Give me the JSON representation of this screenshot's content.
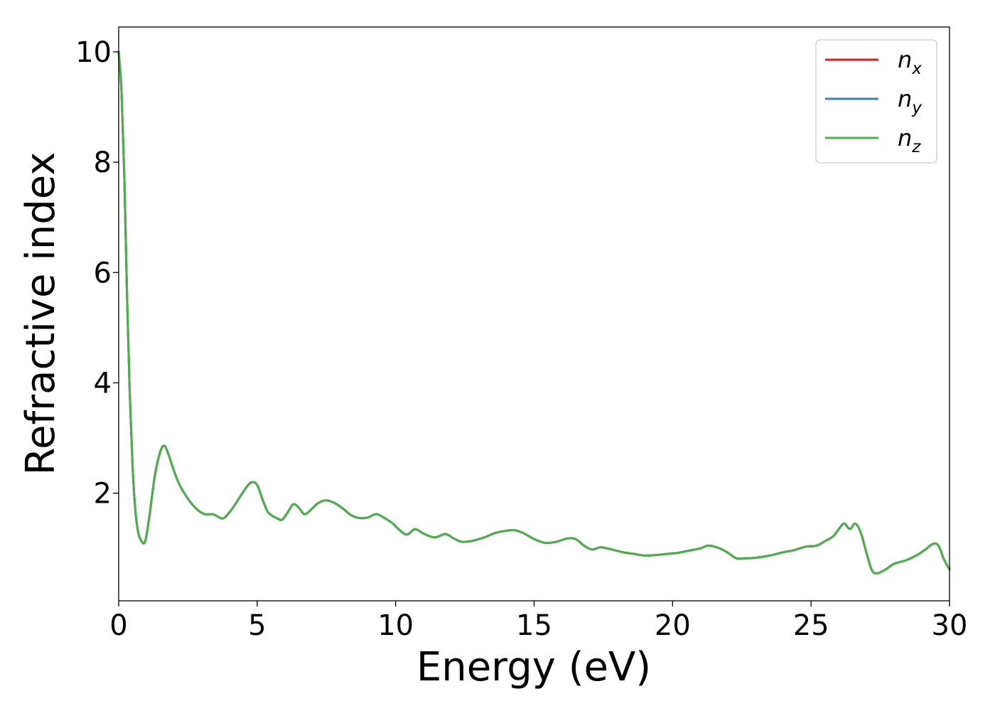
{
  "chart_data": {
    "type": "line",
    "title": "",
    "xlabel": "Energy (eV)",
    "ylabel": "Refractive index",
    "xlim": [
      0,
      30
    ],
    "ylim": [
      0.05,
      10.45
    ],
    "xticks": [
      0,
      5,
      10,
      15,
      20,
      25,
      30
    ],
    "yticks": [
      2,
      4,
      6,
      8,
      10
    ],
    "xtick_labels": [
      "0",
      "5",
      "10",
      "15",
      "20",
      "25",
      "30"
    ],
    "ytick_labels": [
      "2",
      "4",
      "6",
      "8",
      "10"
    ],
    "grid": false,
    "legend_position": "top-right",
    "x": [
      0,
      0.1,
      0.2,
      0.3,
      0.4,
      0.5,
      0.6,
      0.7,
      0.8,
      0.95,
      1.1,
      1.3,
      1.5,
      1.65,
      1.8,
      2.0,
      2.2,
      2.5,
      2.8,
      3.1,
      3.4,
      3.6,
      3.8,
      4.1,
      4.4,
      4.6,
      4.8,
      5.0,
      5.2,
      5.4,
      5.7,
      5.9,
      6.1,
      6.3,
      6.5,
      6.7,
      6.9,
      7.2,
      7.5,
      7.8,
      8.1,
      8.4,
      8.7,
      9.0,
      9.3,
      9.6,
      9.9,
      10.1,
      10.4,
      10.7,
      11.0,
      11.4,
      11.8,
      12.1,
      12.4,
      12.8,
      13.2,
      13.6,
      14.0,
      14.3,
      14.6,
      15.0,
      15.4,
      15.8,
      16.2,
      16.5,
      16.8,
      17.1,
      17.4,
      17.8,
      18.2,
      18.6,
      19.0,
      19.4,
      19.8,
      20.2,
      20.6,
      21.0,
      21.3,
      21.7,
      22.0,
      22.3,
      22.6,
      23.0,
      23.5,
      24.0,
      24.4,
      24.8,
      25.2,
      25.5,
      25.8,
      26.0,
      26.2,
      26.4,
      26.6,
      26.8,
      27.0,
      27.2,
      27.4,
      27.7,
      28.0,
      28.4,
      28.8,
      29.1,
      29.4,
      29.6,
      29.8,
      30.0
    ],
    "series": [
      {
        "name": "n_x",
        "color": "#e41a1c",
        "values": [
          10.0,
          9.3,
          7.8,
          5.6,
          3.8,
          2.5,
          1.7,
          1.3,
          1.15,
          1.12,
          1.55,
          2.3,
          2.75,
          2.86,
          2.7,
          2.4,
          2.15,
          1.9,
          1.72,
          1.62,
          1.62,
          1.57,
          1.55,
          1.72,
          1.95,
          2.1,
          2.2,
          2.15,
          1.88,
          1.65,
          1.55,
          1.52,
          1.65,
          1.8,
          1.74,
          1.62,
          1.68,
          1.82,
          1.87,
          1.82,
          1.72,
          1.6,
          1.55,
          1.56,
          1.62,
          1.55,
          1.45,
          1.35,
          1.25,
          1.35,
          1.27,
          1.2,
          1.26,
          1.18,
          1.12,
          1.14,
          1.2,
          1.28,
          1.32,
          1.33,
          1.28,
          1.17,
          1.1,
          1.12,
          1.18,
          1.17,
          1.05,
          0.98,
          1.02,
          0.98,
          0.93,
          0.9,
          0.87,
          0.88,
          0.9,
          0.92,
          0.96,
          1.0,
          1.05,
          1.0,
          0.92,
          0.82,
          0.82,
          0.83,
          0.87,
          0.93,
          0.97,
          1.03,
          1.05,
          1.13,
          1.22,
          1.35,
          1.45,
          1.35,
          1.45,
          1.28,
          0.92,
          0.6,
          0.55,
          0.62,
          0.72,
          0.78,
          0.87,
          0.97,
          1.08,
          1.05,
          0.8,
          0.62
        ]
      },
      {
        "name": "n_y",
        "color": "#377eb8",
        "values": [
          10.0,
          9.3,
          7.8,
          5.6,
          3.8,
          2.5,
          1.7,
          1.3,
          1.15,
          1.12,
          1.55,
          2.3,
          2.75,
          2.86,
          2.7,
          2.4,
          2.15,
          1.9,
          1.72,
          1.62,
          1.62,
          1.57,
          1.55,
          1.72,
          1.95,
          2.1,
          2.2,
          2.15,
          1.88,
          1.65,
          1.55,
          1.52,
          1.65,
          1.8,
          1.74,
          1.62,
          1.68,
          1.82,
          1.87,
          1.82,
          1.72,
          1.6,
          1.55,
          1.56,
          1.62,
          1.55,
          1.45,
          1.35,
          1.25,
          1.35,
          1.27,
          1.2,
          1.26,
          1.18,
          1.12,
          1.14,
          1.2,
          1.28,
          1.32,
          1.33,
          1.28,
          1.17,
          1.1,
          1.12,
          1.18,
          1.17,
          1.05,
          0.98,
          1.02,
          0.98,
          0.93,
          0.9,
          0.87,
          0.88,
          0.9,
          0.92,
          0.96,
          1.0,
          1.05,
          1.0,
          0.92,
          0.82,
          0.82,
          0.83,
          0.87,
          0.93,
          0.97,
          1.03,
          1.05,
          1.13,
          1.22,
          1.35,
          1.45,
          1.35,
          1.45,
          1.28,
          0.92,
          0.6,
          0.55,
          0.62,
          0.72,
          0.78,
          0.87,
          0.97,
          1.08,
          1.05,
          0.8,
          0.62
        ]
      },
      {
        "name": "n_z",
        "color": "#4daf4a",
        "values": [
          10.0,
          9.3,
          7.8,
          5.6,
          3.8,
          2.5,
          1.7,
          1.3,
          1.15,
          1.12,
          1.55,
          2.3,
          2.75,
          2.86,
          2.7,
          2.4,
          2.15,
          1.9,
          1.72,
          1.62,
          1.62,
          1.57,
          1.55,
          1.72,
          1.95,
          2.1,
          2.2,
          2.15,
          1.88,
          1.65,
          1.55,
          1.52,
          1.65,
          1.8,
          1.74,
          1.62,
          1.68,
          1.82,
          1.87,
          1.82,
          1.72,
          1.6,
          1.55,
          1.56,
          1.62,
          1.55,
          1.45,
          1.35,
          1.25,
          1.35,
          1.27,
          1.2,
          1.26,
          1.18,
          1.12,
          1.14,
          1.2,
          1.28,
          1.32,
          1.33,
          1.28,
          1.17,
          1.1,
          1.12,
          1.18,
          1.17,
          1.05,
          0.98,
          1.02,
          0.98,
          0.93,
          0.9,
          0.87,
          0.88,
          0.9,
          0.92,
          0.96,
          1.0,
          1.05,
          1.0,
          0.92,
          0.82,
          0.82,
          0.83,
          0.87,
          0.93,
          0.97,
          1.03,
          1.05,
          1.13,
          1.22,
          1.35,
          1.45,
          1.35,
          1.45,
          1.28,
          0.92,
          0.6,
          0.55,
          0.62,
          0.72,
          0.78,
          0.87,
          0.97,
          1.08,
          1.05,
          0.8,
          0.62
        ]
      }
    ],
    "legend": [
      {
        "base": "n",
        "sub": "x",
        "color": "#e41a1c"
      },
      {
        "base": "n",
        "sub": "y",
        "color": "#377eb8"
      },
      {
        "base": "n",
        "sub": "z",
        "color": "#4daf4a"
      }
    ]
  }
}
